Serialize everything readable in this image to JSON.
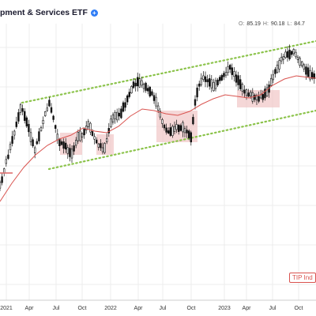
{
  "header": {
    "title": "pment & Services ETF",
    "icon": "plus-circle-icon",
    "icon_color": "#2f7df6"
  },
  "ohlc": {
    "open_key": "O:",
    "open": "85.19",
    "high_key": "H:",
    "high": "90.18",
    "low_key": "L:",
    "low": "84.7"
  },
  "badge": {
    "label": "TIP Ind"
  },
  "colors": {
    "candle": "#111111",
    "moving_average": "#d9534f",
    "channel": "#8bc34a",
    "highlight": "#f2c9c9",
    "grid": "#ececec",
    "stop_line": "#e07070"
  },
  "chart_data": {
    "type": "candlestick",
    "title": "",
    "xlabel": "",
    "ylabel": "",
    "x_tick_labels": [
      "2021",
      "Apr",
      "Jul",
      "Oct",
      "2022",
      "Apr",
      "Jul",
      "Oct",
      "2023",
      "Apr",
      "Jul",
      "Oct"
    ],
    "x_range": [
      "2020-12",
      "2023-12"
    ],
    "grid": true,
    "legend": "none",
    "series": [
      {
        "kind": "candles",
        "values": []
      },
      {
        "kind": "moving_average",
        "values": []
      }
    ]
  }
}
